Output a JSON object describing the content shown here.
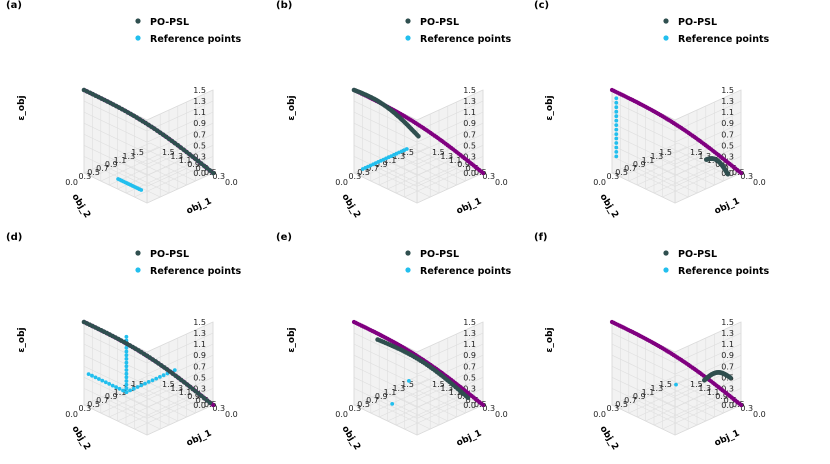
{
  "figure": {
    "legend": {
      "entries": [
        {
          "label": "PO-PSL",
          "color": "#2f4f4f"
        },
        {
          "label": "Reference points",
          "color": "#22bfee"
        }
      ]
    },
    "axes": {
      "x_label": "obj_1",
      "y_label": "obj_2",
      "z_label": "ε_obj",
      "x_ticks": [
        "0.0",
        "0.3",
        "0.5",
        "0.7",
        "0.9",
        "1.1",
        "1.3",
        "1.5"
      ],
      "y_ticks": [
        "0.0",
        "0.3",
        "0.5",
        "0.7",
        "0.9",
        "1.1",
        "1.3",
        "1.5"
      ],
      "z_ticks": [
        "0.0",
        "0.3",
        "0.5",
        "0.7",
        "0.9",
        "1.1",
        "1.3",
        "1.5"
      ]
    },
    "colors": {
      "front": "#800080",
      "psl": "#2f4f4f",
      "reference": "#22bfee",
      "pane": "#f2f2f2"
    }
  },
  "chart_data": [
    {
      "panel": "(a)",
      "type": "scatter3d",
      "front": {
        "from": [
          0,
          1.5,
          0
        ],
        "to": [
          1.5,
          0,
          1.5
        ]
      },
      "psl": {
        "from": [
          0,
          1.5,
          0
        ],
        "to": [
          1.5,
          0,
          1.5
        ]
      },
      "reference": [
        {
          "from": [
            0.95,
            0.25,
            0
          ],
          "to": [
            0.4,
            0.25,
            0
          ],
          "n": 14
        }
      ],
      "xlim": [
        0,
        1.5
      ],
      "ylim": [
        0,
        1.5
      ],
      "zlim": [
        0,
        1.5
      ]
    },
    {
      "panel": "(b)",
      "type": "scatter3d",
      "front": {
        "from": [
          0,
          1.5,
          0
        ],
        "to": [
          1.5,
          0,
          1.5
        ]
      },
      "psl": {
        "from": [
          0.7,
          0.7,
          0.7
        ],
        "to": [
          1.5,
          0,
          1.5
        ]
      },
      "reference": [
        {
          "from": [
            1.5,
            1.2,
            0
          ],
          "to": [
            1.5,
            0.2,
            0
          ],
          "n": 18
        }
      ],
      "xlim": [
        0,
        1.5
      ],
      "ylim": [
        0,
        1.5
      ],
      "zlim": [
        0,
        1.5
      ]
    },
    {
      "panel": "(c)",
      "type": "scatter3d",
      "front": {
        "from": [
          0,
          1.5,
          0
        ],
        "to": [
          1.5,
          0,
          1.5
        ]
      },
      "psl": {
        "from": [
          0.05,
          1.25,
          0.05
        ],
        "to": [
          0.25,
          0.95,
          0.35
        ]
      },
      "reference": [
        {
          "from": [
            1.45,
            0.05,
            1.35
          ],
          "to": [
            1.45,
            0.05,
            0.3
          ],
          "n": 14
        }
      ],
      "xlim": [
        0,
        1.5
      ],
      "ylim": [
        0,
        1.5
      ],
      "zlim": [
        0,
        1.5
      ]
    },
    {
      "panel": "(d)",
      "type": "scatter3d",
      "front": {
        "from": [
          0,
          1.5,
          0
        ],
        "to": [
          1.5,
          0,
          1.5
        ]
      },
      "psl": {
        "from": [
          0.02,
          1.45,
          0.05
        ],
        "to": [
          1.5,
          0,
          1.5
        ]
      },
      "reference": [
        {
          "from": [
            0.7,
            0.2,
            0.45
          ],
          "to": [
            0.7,
            0.2,
            1.45
          ],
          "n": 16
        },
        {
          "from": [
            0.7,
            0.2,
            0.45
          ],
          "to": [
            0.7,
            1.3,
            0.45
          ],
          "n": 14
        },
        {
          "from": [
            0.7,
            0.2,
            0.45
          ],
          "to": [
            1.6,
            0.2,
            0.45
          ],
          "n": 12
        }
      ],
      "xlim": [
        0,
        1.5
      ],
      "ylim": [
        0,
        1.5
      ],
      "zlim": [
        0,
        1.5
      ]
    },
    {
      "panel": "(e)",
      "type": "scatter3d",
      "front": {
        "from": [
          0,
          1.5,
          0
        ],
        "to": [
          1.5,
          0,
          1.5
        ]
      },
      "psl": {
        "from": [
          0.15,
          1.3,
          0.15
        ],
        "to": [
          1.2,
          0.25,
          1.2
        ]
      },
      "reference": [
        {
          "from": [
            0.8,
            0.2,
            0.2
          ],
          "to": [
            0.8,
            0.2,
            0.2
          ],
          "n": 1
        },
        {
          "from": [
            1.45,
            1.2,
            0.02
          ],
          "to": [
            1.45,
            1.2,
            0.02
          ],
          "n": 1
        }
      ],
      "xlim": [
        0,
        1.5
      ],
      "ylim": [
        0,
        1.5
      ],
      "zlim": [
        0,
        1.5
      ]
    },
    {
      "panel": "(f)",
      "type": "scatter3d",
      "front": {
        "from": [
          0,
          1.5,
          0
        ],
        "to": [
          1.5,
          0,
          1.5
        ]
      },
      "psl": {
        "from": [
          0.25,
          1.5,
          0.4
        ],
        "to": [
          0.35,
          1.0,
          0.5
        ]
      },
      "reference": [
        {
          "from": [
            0.5,
            0.5,
            0.55
          ],
          "to": [
            0.5,
            0.5,
            0.55
          ],
          "n": 1
        }
      ],
      "xlim": [
        0,
        1.5
      ],
      "ylim": [
        0,
        1.5
      ],
      "zlim": [
        0,
        1.5
      ]
    }
  ]
}
